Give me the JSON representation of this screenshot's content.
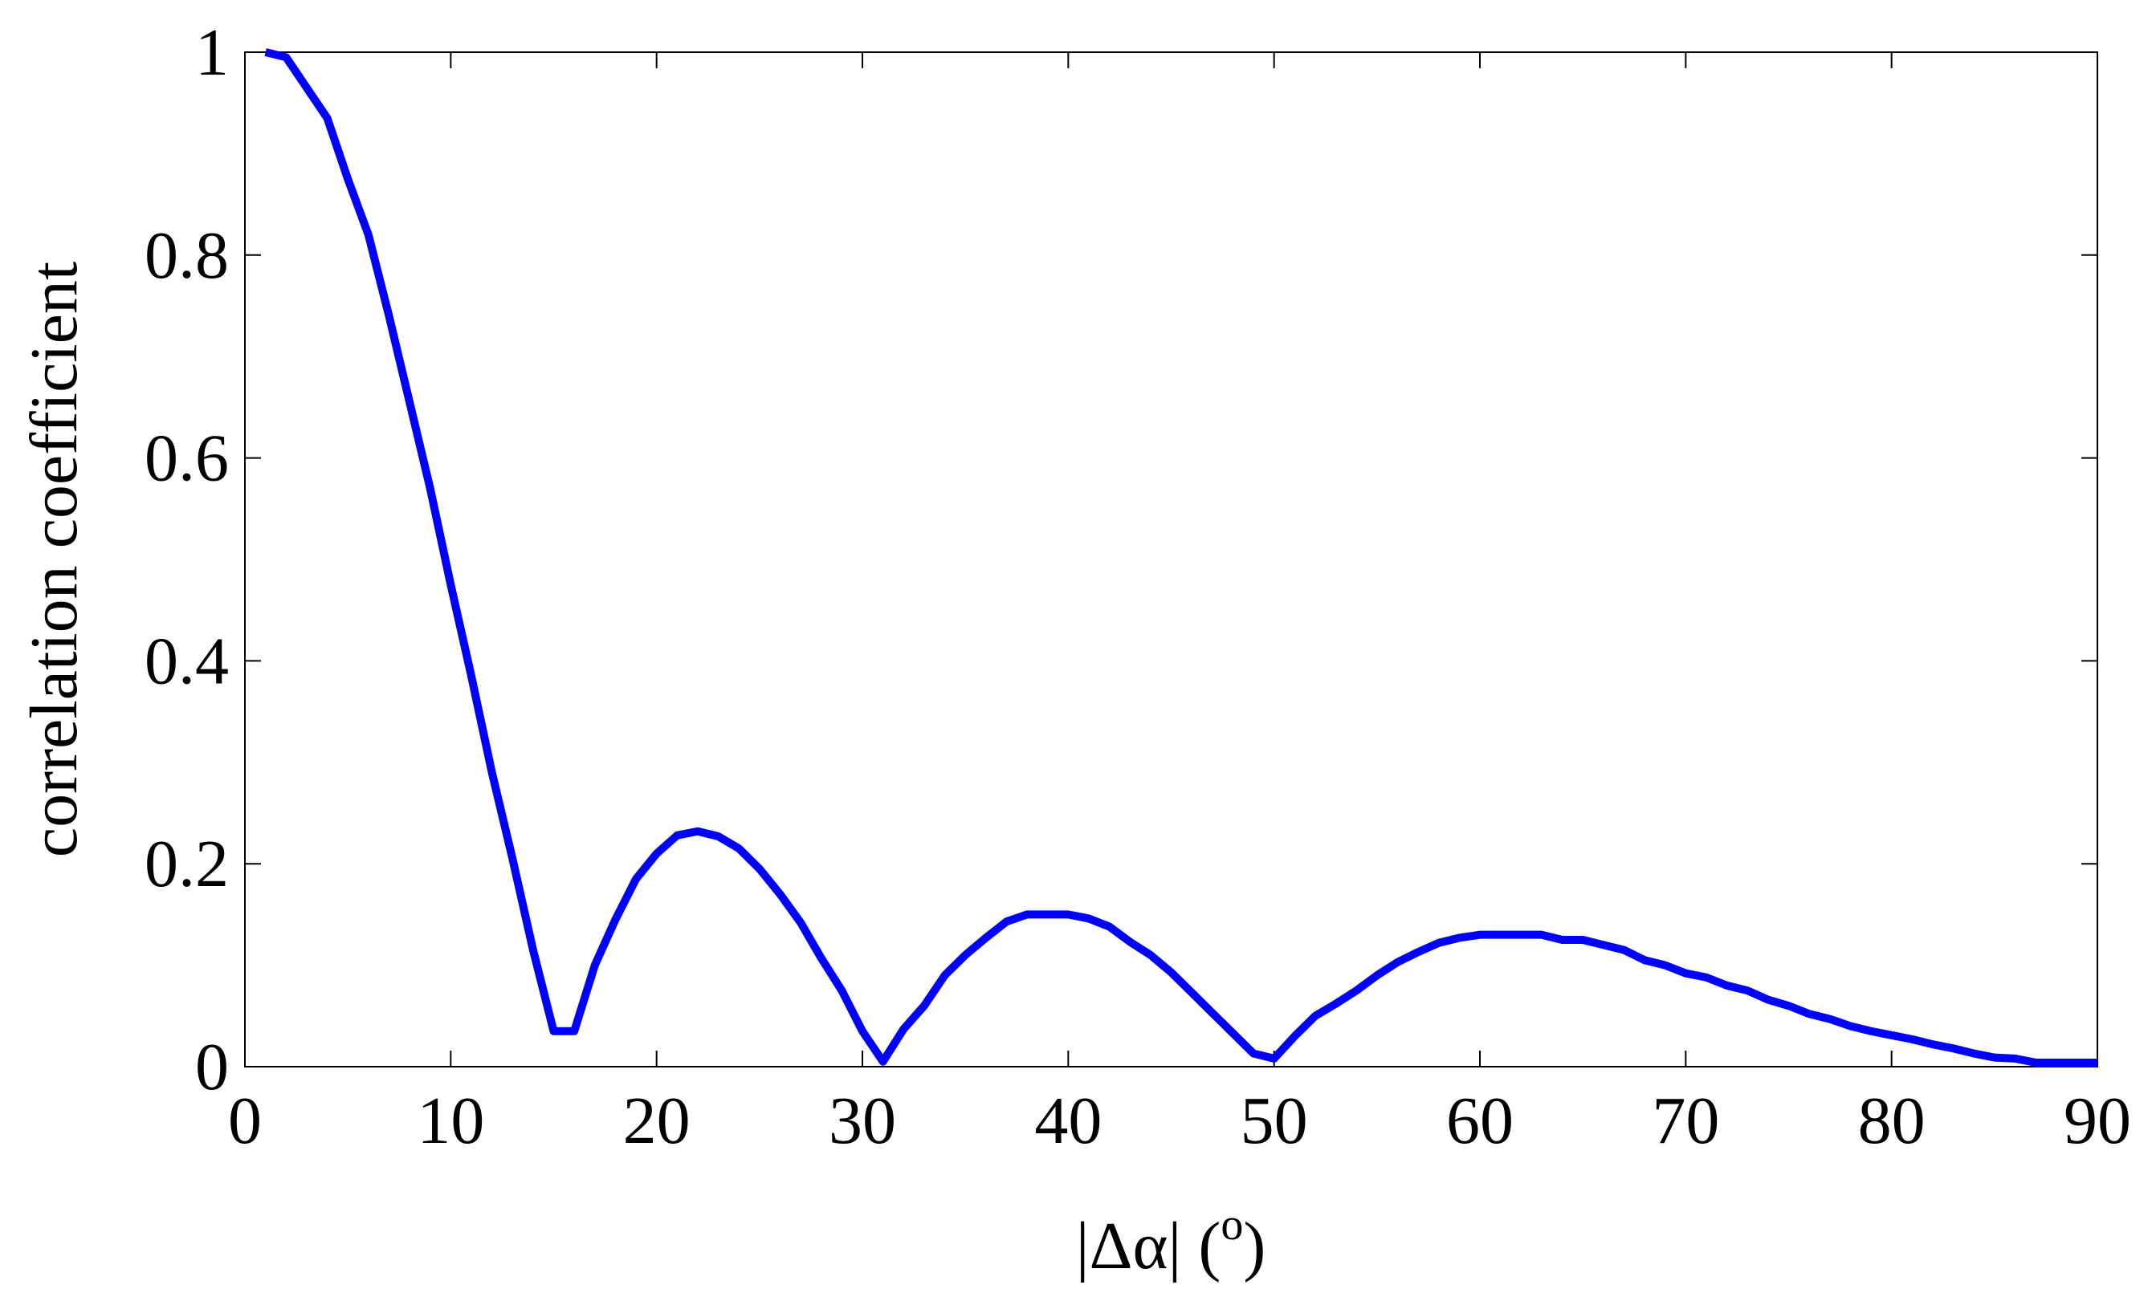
{
  "chart_data": {
    "type": "line",
    "xlabel": {
      "main": "|Δα| (",
      "sup": "o",
      "end": ")"
    },
    "ylabel": "correlation coefficient",
    "x": [
      1,
      2,
      3,
      4,
      5,
      6,
      7,
      8,
      9,
      10,
      11,
      12,
      13,
      14,
      15,
      16,
      17,
      18,
      19,
      20,
      21,
      22,
      23,
      24,
      25,
      26,
      27,
      28,
      29,
      30,
      31,
      32,
      33,
      34,
      35,
      36,
      37,
      38,
      39,
      40,
      41,
      42,
      43,
      44,
      45,
      46,
      47,
      48,
      49,
      50,
      51,
      52,
      53,
      54,
      55,
      56,
      57,
      58,
      59,
      60,
      61,
      62,
      63,
      64,
      65,
      66,
      67,
      68,
      69,
      70,
      71,
      72,
      73,
      74,
      75,
      76,
      77,
      78,
      79,
      80,
      81,
      82,
      83,
      84,
      85,
      86,
      87,
      88,
      89,
      90
    ],
    "series": [
      {
        "color": "#0000ff",
        "values": [
          1.0,
          0.995,
          0.965,
          0.935,
          0.875,
          0.82,
          0.74,
          0.655,
          0.57,
          0.475,
          0.385,
          0.29,
          0.205,
          0.115,
          0.035,
          0.035,
          0.1,
          0.145,
          0.185,
          0.21,
          0.228,
          0.232,
          0.227,
          0.215,
          0.195,
          0.17,
          0.142,
          0.107,
          0.075,
          0.035,
          0.005,
          0.037,
          0.06,
          0.09,
          0.11,
          0.127,
          0.143,
          0.15,
          0.15,
          0.15,
          0.146,
          0.138,
          0.123,
          0.11,
          0.093,
          0.073,
          0.053,
          0.033,
          0.013,
          0.008,
          0.03,
          0.05,
          0.062,
          0.075,
          0.09,
          0.103,
          0.113,
          0.122,
          0.127,
          0.13,
          0.13,
          0.13,
          0.13,
          0.125,
          0.125,
          0.12,
          0.115,
          0.105,
          0.1,
          0.092,
          0.088,
          0.08,
          0.075,
          0.066,
          0.06,
          0.052,
          0.047,
          0.04,
          0.035,
          0.031,
          0.027,
          0.022,
          0.018,
          0.013,
          0.009,
          0.008,
          0.004,
          0.004,
          0.004,
          0.004
        ]
      }
    ],
    "xlim": [
      0,
      90
    ],
    "xticks": [
      0,
      10,
      20,
      30,
      40,
      50,
      60,
      70,
      80,
      90
    ],
    "ylim": [
      0,
      1
    ],
    "yticks": [
      0,
      0.2,
      0.4,
      0.6,
      0.8,
      1
    ],
    "grid": false
  }
}
